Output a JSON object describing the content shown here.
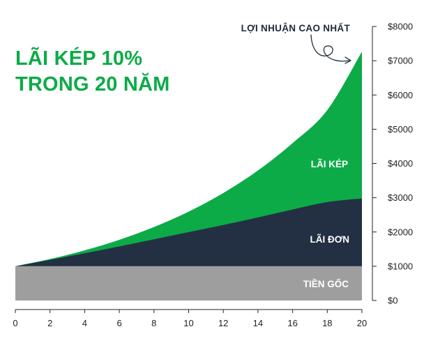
{
  "colors": {
    "compound": "#0cab47",
    "simple": "#233043",
    "principal": "#9e9e9e",
    "title": "#0cab47",
    "axis": "#222222",
    "band_label": "#ffffff",
    "annotation": "#1f2a3a"
  },
  "chart_data": {
    "type": "area",
    "title": [
      "LÃI KÉP 10%",
      "TRONG 20 NĂM"
    ],
    "annotation": "LỢI NHUẬN CAO NHẤT",
    "xlabel": "",
    "ylabel": "",
    "x_ticks": [
      0,
      2,
      4,
      6,
      8,
      10,
      12,
      14,
      16,
      18,
      20
    ],
    "x_tick_labels": [
      "0",
      "2",
      "4",
      "6",
      "8",
      "10",
      "12",
      "14",
      "16",
      "18",
      "20"
    ],
    "y_ticks": [
      0,
      1000,
      2000,
      3000,
      4000,
      5000,
      6000,
      7000,
      8000
    ],
    "y_tick_labels": [
      "$0",
      "$1000",
      "$2000",
      "$3000",
      "$4000",
      "$5000",
      "$6000",
      "$7000",
      "$8000"
    ],
    "xlim": [
      0,
      20
    ],
    "ylim": [
      0,
      8000
    ],
    "grid": false,
    "series": [
      {
        "name": "LÃI KÉP",
        "x": [
          0,
          2,
          4,
          6,
          8,
          10,
          12,
          14,
          16,
          18,
          20
        ],
        "values": [
          1000,
          1210,
          1464,
          1772,
          2144,
          2594,
          3138,
          3797,
          4595,
          5560,
          7268
        ]
      },
      {
        "name": "LÃI ĐƠN",
        "x": [
          0,
          2,
          4,
          6,
          8,
          10,
          12,
          14,
          16,
          18,
          20
        ],
        "values": [
          1000,
          1186,
          1378,
          1578,
          1786,
          1998,
          2204,
          2424,
          2656,
          2872,
          2980
        ]
      },
      {
        "name": "TIỀN GỐC",
        "x": [
          0,
          20
        ],
        "values": [
          1000,
          1000
        ]
      }
    ]
  }
}
